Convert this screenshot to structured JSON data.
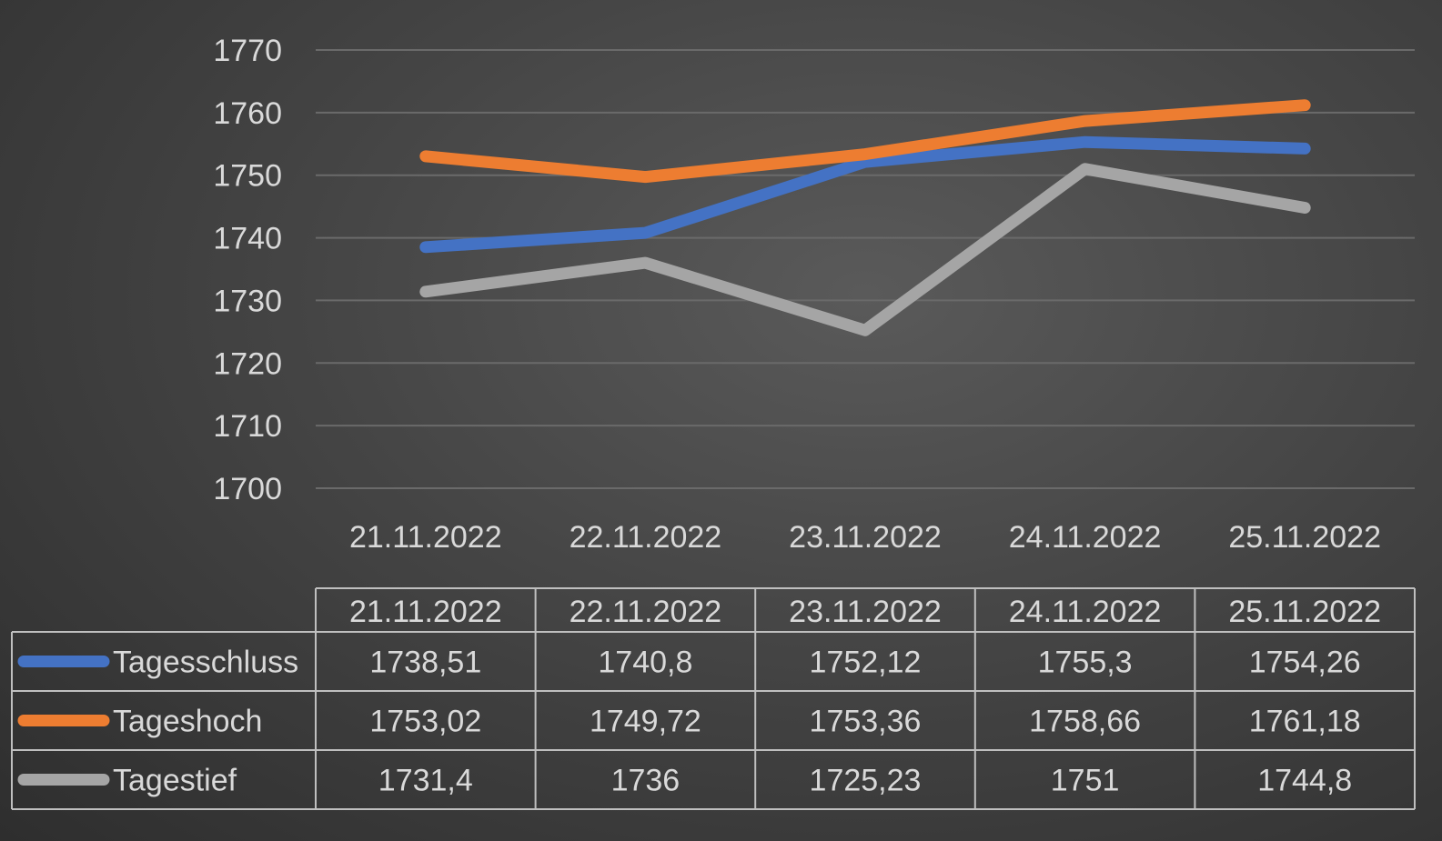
{
  "chart_data": {
    "type": "line",
    "categories": [
      "21.11.2022",
      "22.11.2022",
      "23.11.2022",
      "24.11.2022",
      "25.11.2022"
    ],
    "series": [
      {
        "name": "Tagesschluss",
        "color": "#4472c4",
        "values": [
          1738.51,
          1740.8,
          1752.12,
          1755.3,
          1754.26
        ],
        "labels": [
          "1738,51",
          "1740,8",
          "1752,12",
          "1755,3",
          "1754,26"
        ]
      },
      {
        "name": "Tageshoch",
        "color": "#ed7d31",
        "values": [
          1753.02,
          1749.72,
          1753.36,
          1758.66,
          1761.18
        ],
        "labels": [
          "1753,02",
          "1749,72",
          "1753,36",
          "1758,66",
          "1761,18"
        ]
      },
      {
        "name": "Tagestief",
        "color": "#a5a5a5",
        "values": [
          1731.4,
          1736,
          1725.23,
          1751,
          1744.8
        ],
        "labels": [
          "1731,4",
          "1736",
          "1725,23",
          "1751",
          "1744,8"
        ]
      }
    ],
    "ylim": [
      1700,
      1770
    ],
    "yticks": [
      "1700",
      "1710",
      "1720",
      "1730",
      "1740",
      "1750",
      "1760",
      "1770"
    ],
    "grid": true,
    "legend": "data-table",
    "title": "",
    "xlabel": "",
    "ylabel": ""
  }
}
